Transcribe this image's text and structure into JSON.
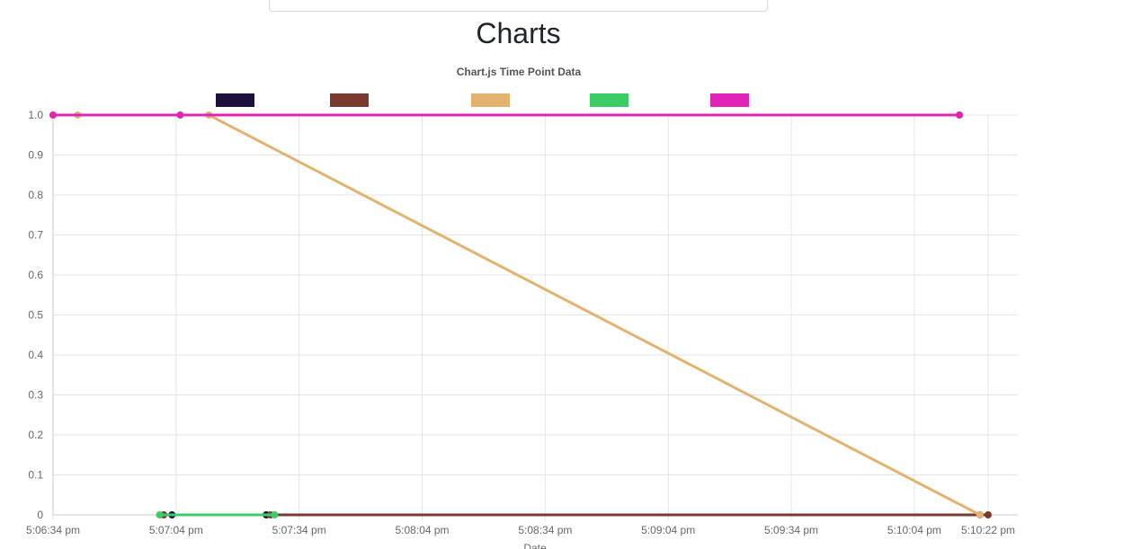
{
  "page": {
    "heading": "Charts"
  },
  "chart_data": {
    "type": "line",
    "title": "Chart.js Time Point Data",
    "xlabel": "Date",
    "ylabel": "",
    "xlim": [
      "5:06:34 pm",
      "5:10:22 pm"
    ],
    "ylim": [
      0,
      1.0
    ],
    "x_ticks": [
      "5:06:34 pm",
      "5:07:04 pm",
      "5:07:34 pm",
      "5:08:04 pm",
      "5:08:34 pm",
      "5:09:04 pm",
      "5:09:34 pm",
      "5:10:04 pm",
      "5:10:22 pm"
    ],
    "y_ticks": [
      "0",
      "0.1",
      "0.2",
      "0.3",
      "0.4",
      "0.5",
      "0.6",
      "0.7",
      "0.8",
      "0.9",
      "1.0"
    ],
    "grid": true,
    "legend_position": "top",
    "series": [
      {
        "color": "#1f0f3d",
        "points": [
          [
            "5:07:03 pm",
            0
          ],
          [
            "5:07:26 pm",
            0
          ],
          [
            "5:10:20 pm",
            0
          ]
        ]
      },
      {
        "color": "#7a3a2e",
        "points": [
          [
            "5:07:01 pm",
            0
          ],
          [
            "5:07:27 pm",
            0
          ],
          [
            "5:10:22 pm",
            0
          ]
        ]
      },
      {
        "color": "#e2b26e",
        "points": [
          [
            "5:06:40 pm",
            1.0
          ],
          [
            "5:07:12 pm",
            1.0
          ],
          [
            "5:10:20 pm",
            0
          ]
        ]
      },
      {
        "color": "#3ccc65",
        "points": [
          [
            "5:07:00 pm",
            0
          ],
          [
            "5:07:28 pm",
            0
          ]
        ]
      },
      {
        "color": "#e024b8",
        "points": [
          [
            "5:06:34 pm",
            1.0
          ],
          [
            "5:07:05 pm",
            1.0
          ],
          [
            "5:10:15 pm",
            1.0
          ]
        ]
      }
    ]
  }
}
